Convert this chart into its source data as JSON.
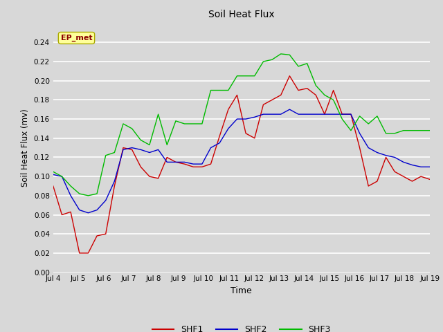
{
  "title": "Soil Heat Flux",
  "xlabel": "Time",
  "ylabel": "Soil Heat Flux (mv)",
  "ylim": [
    0.0,
    0.26
  ],
  "yticks": [
    0.0,
    0.02,
    0.04,
    0.06,
    0.08,
    0.1,
    0.12,
    0.14,
    0.16,
    0.18,
    0.2,
    0.22,
    0.24
  ],
  "xtick_labels": [
    "Jul 4",
    "Jul 5",
    "Jul 6",
    "Jul 7",
    "Jul 8",
    "Jul 9",
    "Jul 10",
    "Jul 11",
    "Jul 12",
    "Jul 13",
    "Jul 14",
    "Jul 15",
    "Jul 16",
    "Jul 17",
    "Jul 18",
    "Jul 19"
  ],
  "background_color": "#d8d8d8",
  "plot_bg_color": "#d8d8d8",
  "annotation_text": "EP_met",
  "annotation_color": "#8b0000",
  "annotation_bg": "#ffff99",
  "shf1_color": "#cc0000",
  "shf2_color": "#0000cc",
  "shf3_color": "#00bb00",
  "shf1": [
    0.09,
    0.06,
    0.063,
    0.02,
    0.02,
    0.038,
    0.04,
    0.09,
    0.13,
    0.128,
    0.11,
    0.1,
    0.098,
    0.12,
    0.115,
    0.113,
    0.11,
    0.11,
    0.113,
    0.142,
    0.17,
    0.185,
    0.145,
    0.14,
    0.175,
    0.18,
    0.185,
    0.205,
    0.19,
    0.192,
    0.185,
    0.165,
    0.19,
    0.165,
    0.165,
    0.13,
    0.09,
    0.095,
    0.12,
    0.105,
    0.1,
    0.095,
    0.1,
    0.097
  ],
  "shf2": [
    0.102,
    0.1,
    0.08,
    0.065,
    0.062,
    0.065,
    0.075,
    0.095,
    0.128,
    0.13,
    0.128,
    0.125,
    0.128,
    0.115,
    0.115,
    0.115,
    0.113,
    0.113,
    0.13,
    0.135,
    0.15,
    0.16,
    0.16,
    0.162,
    0.165,
    0.165,
    0.165,
    0.17,
    0.165,
    0.165,
    0.165,
    0.165,
    0.165,
    0.165,
    0.165,
    0.145,
    0.13,
    0.125,
    0.122,
    0.12,
    0.115,
    0.112,
    0.11,
    0.11
  ],
  "shf3": [
    0.105,
    0.1,
    0.09,
    0.082,
    0.08,
    0.082,
    0.122,
    0.125,
    0.155,
    0.15,
    0.138,
    0.133,
    0.165,
    0.133,
    0.158,
    0.155,
    0.155,
    0.155,
    0.19,
    0.19,
    0.19,
    0.205,
    0.205,
    0.205,
    0.22,
    0.222,
    0.228,
    0.227,
    0.215,
    0.218,
    0.195,
    0.185,
    0.18,
    0.16,
    0.148,
    0.163,
    0.155,
    0.163,
    0.145,
    0.145,
    0.148,
    0.148,
    0.148,
    0.148
  ]
}
